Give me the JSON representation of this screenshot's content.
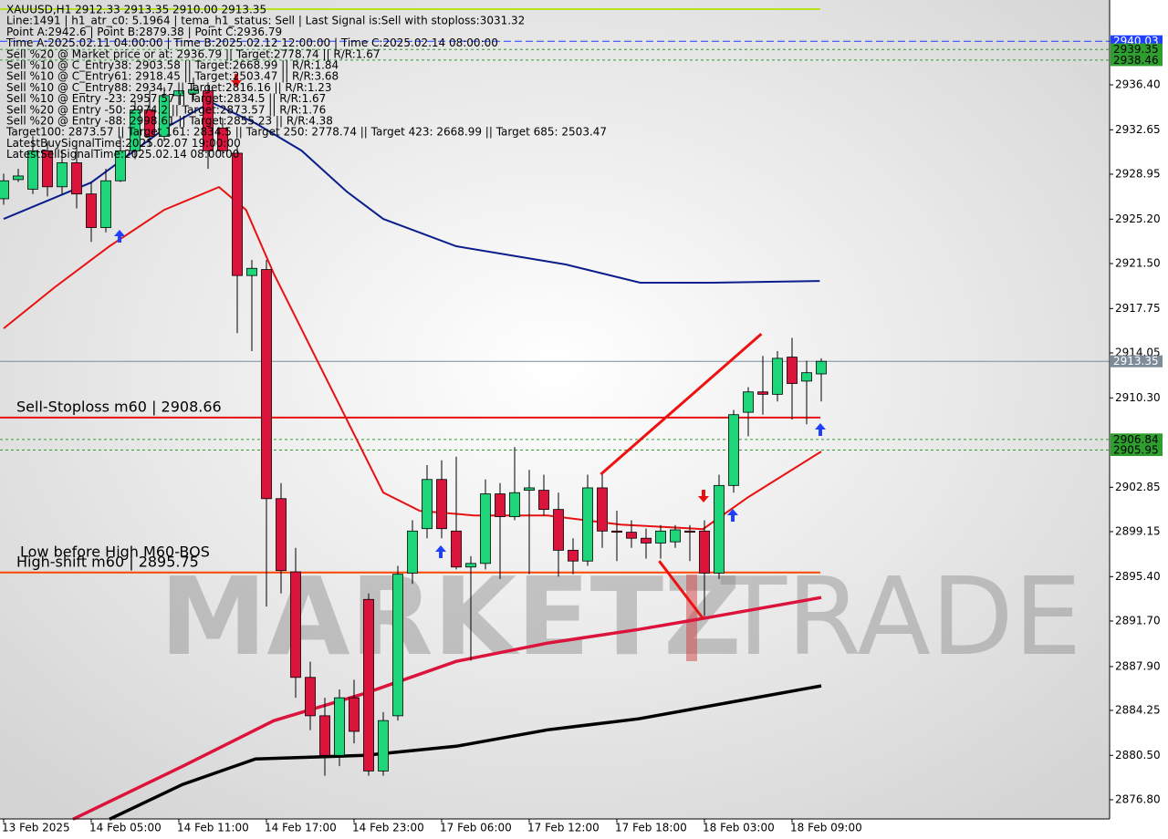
{
  "chart_data": {
    "type": "candlestick",
    "info_lines": [
      "XAUUSD,H1  2912.33 2913.35 2910.00 2913.35",
      "Line:1491 | h1_atr_c0: 5.1964 | tema_h1_status: Sell | Last Signal is:Sell with stoploss:3031.32",
      "Point A:2942.6 | Point B:2879.38 | Point C:2936.79",
      "Time A:2025.02.11 04:00:00 | Time B:2025.02.12 12:00:00 | Time C:2025.02.14 08:00:00",
      "Sell %20 @ Market price or at: 2936.79 || Target:2778.74 || R/R:1.67",
      "Sell %10 @ C_Entry38: 2903.58 || Target:2668.99 || R/R:1.84",
      "Sell %10 @ C_Entry61: 2918.45 || Target:2503.47 || R/R:3.68",
      "Sell %10 @ C_Entry88: 2934.7 || Target:2816.16 || R/R:1.23",
      "Sell %10 @ Entry -23: 2957.57 || Target:2834.5 || R/R:1.67",
      "Sell %20 @ Entry -50: 2974.2 || Target:2873.57 || R/R:1.76",
      "Sell %20 @ Entry -88: 2998.61 || Target:2855.23 || R/R:4.38",
      "Target100: 2873.57 || Target 161: 2834.5 || Target 250: 2778.74 || Target 423: 2668.99 || Target 685: 2503.47",
      "LatestBuySignalTime:2025.02.07 19:00:00",
      "LatestSellSignalTime:2025.02.14 08:00:00"
    ],
    "annotations": [
      "Sell-Stoploss m60 | 2908.66",
      "Low before High   M60-BOS",
      "High-shift m60 | 2895.75"
    ],
    "watermark": [
      "MARKETZ",
      "TRADE"
    ],
    "categories": [
      "13 Feb 2025",
      null,
      null,
      null,
      null,
      null,
      "14 Feb 05:00",
      null,
      null,
      null,
      null,
      null,
      "14 Feb 11:00",
      null,
      null,
      null,
      null,
      null,
      "14 Feb 17:00",
      null,
      null,
      null,
      null,
      null,
      "14 Feb 23:00",
      null,
      null,
      null,
      null,
      null,
      "17 Feb 06:00",
      null,
      null,
      null,
      null,
      null,
      "17 Feb 12:00",
      null,
      null,
      null,
      null,
      null,
      "17 Feb 18:00",
      null,
      null,
      null,
      null,
      null,
      "18 Feb 03:00",
      null,
      null,
      null,
      null,
      null,
      "18 Feb 09:00",
      null,
      null
    ],
    "open": [
      2926.9,
      2928.5,
      2927.7,
      2930.9,
      2927.9,
      2929.9,
      2927.3,
      2924.5,
      2928.4,
      2930.9,
      2934.3,
      2932.1,
      2935.5,
      2935.7,
      2935.9,
      2932.8,
      2930.7,
      2920.5,
      2921.0,
      2901.9,
      2895.8,
      2887.0,
      2883.8,
      2880.5,
      2885.3,
      2893.5,
      2879.2,
      2883.8,
      2895.7,
      2899.4,
      2903.5,
      2899.2,
      2896.2,
      2896.5,
      2902.3,
      2900.4,
      2902.6,
      2902.6,
      2901.0,
      2897.6,
      2896.7,
      2902.8,
      2899.2,
      2899.1,
      2898.6,
      2898.2,
      2898.3,
      2899.2,
      2899.2,
      2895.7,
      2903.0,
      2909.1,
      2910.8,
      2910.6,
      2913.7,
      2911.7,
      2912.3
    ],
    "high": [
      2929.0,
      2929.4,
      2932.1,
      2931.7,
      2930.9,
      2931.3,
      2928.3,
      2929.4,
      2932.1,
      2935.1,
      2935.9,
      2936.2,
      2936.6,
      2937.0,
      2936.6,
      2933.6,
      2931.3,
      2921.8,
      2921.8,
      2903.2,
      2897.8,
      2888.3,
      2885.3,
      2886.0,
      2886.8,
      2894.0,
      2884.1,
      2896.3,
      2900.1,
      2904.7,
      2905.1,
      2905.4,
      2897.1,
      2903.5,
      2903.2,
      2906.2,
      2904.3,
      2903.9,
      2902.4,
      2898.6,
      2903.9,
      2903.9,
      2900.9,
      2900.1,
      2899.4,
      2899.7,
      2899.7,
      2899.7,
      2900.1,
      2903.9,
      2909.3,
      2911.2,
      2913.8,
      2914.2,
      2915.3,
      2913.4,
      2913.6
    ],
    "low": [
      2926.4,
      2928.3,
      2927.3,
      2927.1,
      2927.3,
      2926.1,
      2923.3,
      2924.1,
      2928.3,
      2930.2,
      2931.3,
      2931.7,
      2934.7,
      2935.1,
      2929.4,
      2930.4,
      2915.7,
      2914.2,
      2892.9,
      2894.0,
      2885.3,
      2882.6,
      2878.8,
      2879.6,
      2881.5,
      2878.8,
      2878.8,
      2883.4,
      2894.8,
      2898.6,
      2898.6,
      2896.0,
      2888.4,
      2896.0,
      2895.2,
      2900.1,
      2895.6,
      2900.5,
      2895.4,
      2895.6,
      2896.3,
      2897.8,
      2896.7,
      2897.8,
      2896.9,
      2896.9,
      2897.8,
      2896.7,
      2892.1,
      2895.2,
      2902.4,
      2907.1,
      2908.9,
      2910.0,
      2908.5,
      2908.1,
      2910.0
    ],
    "close": [
      2928.4,
      2928.8,
      2930.9,
      2927.9,
      2929.9,
      2927.3,
      2924.5,
      2928.4,
      2930.9,
      2934.3,
      2932.1,
      2935.5,
      2935.9,
      2936.0,
      2930.9,
      2930.9,
      2920.5,
      2921.1,
      2901.9,
      2895.9,
      2887.0,
      2883.8,
      2880.5,
      2885.3,
      2882.5,
      2879.2,
      2883.4,
      2895.6,
      2899.2,
      2903.5,
      2899.4,
      2896.2,
      2896.5,
      2902.3,
      2900.4,
      2902.4,
      2902.8,
      2901.0,
      2897.6,
      2896.7,
      2902.8,
      2899.2,
      2899.1,
      2898.6,
      2898.2,
      2899.2,
      2899.3,
      2899.1,
      2895.7,
      2903.0,
      2908.9,
      2910.8,
      2910.6,
      2913.6,
      2911.5,
      2912.4,
      2913.35
    ],
    "up_color": "#1ed67a",
    "down_color": "#dc143c",
    "lines": [
      {
        "color": "#0a1e8c",
        "width": 2,
        "x": [
          0,
          6,
          11.1,
          14.2,
          17.25,
          20.4,
          23.5,
          26,
          31,
          38.5,
          43.6,
          48.5,
          55.9
        ],
        "values": [
          2925.22,
          2928.26,
          2932.82,
          2934.95,
          2933.2,
          2930.92,
          2927.5,
          2925.22,
          2922.94,
          2921.42,
          2919.9,
          2919.9,
          2920.05
        ]
      },
      {
        "color": "#e81010",
        "width": 2,
        "x": [
          0,
          3.5,
          7.25,
          11,
          14.75,
          16.6,
          18.5,
          21,
          23.5,
          26,
          28.5,
          32.25,
          37.25,
          42.25,
          47.9,
          51,
          53.5,
          56
        ],
        "values": [
          2916.09,
          2919.52,
          2922.94,
          2925.98,
          2927.88,
          2925.98,
          2920.66,
          2914.57,
          2908.49,
          2902.41,
          2900.88,
          2900.5,
          2900.5,
          2899.74,
          2899.36,
          2902.03,
          2903.93,
          2905.83
        ]
      },
      {
        "color": "#dc143c",
        "width": 3.5,
        "x": [
          4.75,
          12.25,
          18.5,
          24.75,
          31,
          37.25,
          43.5,
          47.9,
          56
        ],
        "values": [
          2875.18,
          2879.59,
          2883.39,
          2885.67,
          2888.34,
          2889.86,
          2891.0,
          2891.91,
          2893.66
        ]
      },
      {
        "color": "#000000",
        "width": 3.5,
        "x": [
          7.25,
          12.25,
          17.25,
          24.75,
          31,
          37.25,
          43.5,
          49.75,
          56
        ],
        "values": [
          2875.18,
          2878.07,
          2880.2,
          2880.5,
          2881.26,
          2882.63,
          2883.55,
          2884.92,
          2886.29
        ]
      },
      {
        "color": "#ee1111",
        "width": 3,
        "x": [
          40.9,
          51.9
        ],
        "values": [
          2903.93,
          2915.64
        ]
      },
      {
        "color": "#ee1111",
        "width": 3,
        "x": [
          44.9,
          47.9
        ],
        "values": [
          2896.7,
          2891.91
        ]
      }
    ],
    "levels": [
      {
        "value": 2940.03,
        "color": "#1f3fff",
        "style": "dashed",
        "full": true,
        "tag": true,
        "text_color": "#ffffff"
      },
      {
        "value": 2939.35,
        "color": "#2e9e2e",
        "style": "dotted",
        "full": true,
        "tag": true,
        "text_color": "#000000"
      },
      {
        "value": 2938.46,
        "color": "#2e9e2e",
        "style": "dotted",
        "full": true,
        "tag": true,
        "text_color": "#000000"
      },
      {
        "value": 2913.35,
        "color": "#7d8b99",
        "style": "solid",
        "full": true,
        "tag": true,
        "text_color": "#ffffff"
      },
      {
        "value": 2908.66,
        "color": "#e81010",
        "style": "solid",
        "full": false,
        "tag": false,
        "text_color": "#000000"
      },
      {
        "value": 2906.84,
        "color": "#2e9e2e",
        "style": "dotted",
        "full": true,
        "tag": true,
        "text_color": "#000000"
      },
      {
        "value": 2905.95,
        "color": "#2e9e2e",
        "style": "dotted",
        "full": true,
        "tag": true,
        "text_color": "#000000"
      },
      {
        "value": 2895.75,
        "color": "#ff4500",
        "style": "solid",
        "full": false,
        "tag": false,
        "text_color": "#000000"
      }
    ],
    "ylim": [
      2875.2,
      2943.47
    ],
    "yticks": [
      {
        "value": 2876.8,
        "label": "2876.80"
      },
      {
        "value": 2880.5,
        "label": "2880.50"
      },
      2884.25,
      {
        "value": 2887.9,
        "label": "2887.90"
      },
      {
        "value": 2891.7,
        "label": "2891.70"
      },
      {
        "value": 2895.4,
        "label": "2895.40"
      },
      2899.15,
      2902.85,
      {
        "value": 2910.3,
        "label": "2910.30"
      },
      2914.05,
      2917.75,
      {
        "value": 2921.5,
        "label": "2921.50"
      },
      {
        "value": 2925.2,
        "label": "2925.20"
      },
      2928.95,
      2932.65,
      {
        "value": 2936.4,
        "label": "2936.40"
      }
    ],
    "grid": false
  }
}
